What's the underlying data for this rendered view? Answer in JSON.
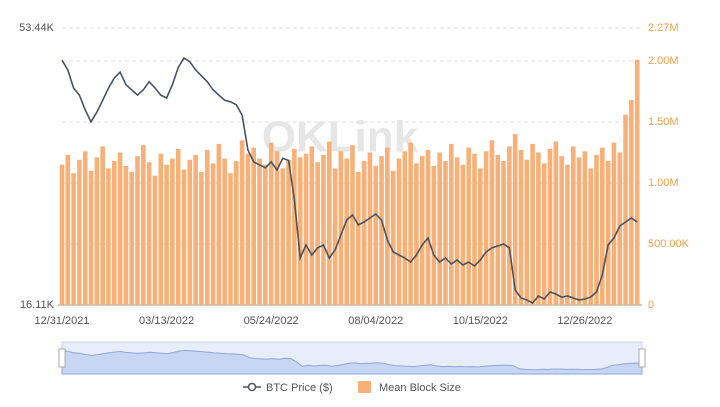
{
  "chart_data": {
    "type": "combo",
    "watermark": "OKLink",
    "categories": [
      "12/31/2021",
      null,
      null,
      null,
      null,
      null,
      null,
      null,
      null,
      null,
      null,
      null,
      null,
      null,
      null,
      null,
      null,
      null,
      "03/13/2022",
      null,
      null,
      null,
      null,
      null,
      null,
      null,
      null,
      null,
      null,
      null,
      null,
      null,
      null,
      null,
      null,
      null,
      "05/24/2022",
      null,
      null,
      null,
      null,
      null,
      null,
      null,
      null,
      null,
      null,
      null,
      null,
      null,
      null,
      null,
      null,
      null,
      "08/04/2022",
      null,
      null,
      null,
      null,
      null,
      null,
      null,
      null,
      null,
      null,
      null,
      null,
      null,
      null,
      null,
      null,
      null,
      "10/15/2022",
      null,
      null,
      null,
      null,
      null,
      null,
      null,
      null,
      null,
      null,
      null,
      null,
      null,
      null,
      null,
      null,
      null,
      "12/26/2022",
      null,
      null,
      null,
      null,
      null,
      null,
      null,
      null,
      null
    ],
    "series": [
      {
        "name": "BTC Price ($)",
        "type": "line",
        "axis": "y",
        "color": "#4a5360",
        "values": [
          49100,
          47800,
          45350,
          44400,
          42400,
          40800,
          42100,
          43700,
          45350,
          46700,
          47500,
          45800,
          45100,
          44400,
          45100,
          46200,
          45350,
          44400,
          44000,
          45800,
          48100,
          49400,
          48900,
          47800,
          47000,
          46200,
          45100,
          44400,
          43700,
          43500,
          43100,
          41700,
          37000,
          35400,
          35000,
          34600,
          35400,
          34300,
          35900,
          35600,
          30260,
          22440,
          24200,
          22850,
          23800,
          24200,
          22440,
          23520,
          25540,
          27560,
          28240,
          26900,
          27300,
          27830,
          28370,
          27560,
          24870,
          23250,
          22850,
          22440,
          21900,
          22850,
          24200,
          25140,
          22850,
          21900,
          22440,
          21640,
          22170,
          21500,
          21900,
          21360,
          22170,
          23250,
          23800,
          24060,
          24330,
          23800,
          18150,
          17050,
          16780,
          16380,
          17320,
          16920,
          17860,
          17590,
          17180,
          17320,
          17050,
          16780,
          16920,
          17180,
          17860,
          20150,
          24200,
          25140,
          26760,
          27300,
          27830,
          27300
        ]
      },
      {
        "name": "Mean Block Size",
        "type": "bar",
        "axis": "y2",
        "color": "#f7b077",
        "values": [
          1150000,
          1230000,
          1080000,
          1190000,
          1260000,
          1100000,
          1210000,
          1300000,
          1120000,
          1180000,
          1250000,
          1140000,
          1090000,
          1220000,
          1310000,
          1170000,
          1060000,
          1240000,
          1150000,
          1200000,
          1280000,
          1110000,
          1190000,
          1230000,
          1090000,
          1270000,
          1160000,
          1320000,
          1200000,
          1080000,
          1180000,
          1350000,
          1240000,
          1290000,
          1200000,
          1150000,
          1330000,
          1260000,
          1120000,
          1190000,
          1280000,
          1210000,
          1240000,
          1300000,
          1170000,
          1230000,
          1340000,
          1120000,
          1260000,
          1200000,
          1310000,
          1090000,
          1180000,
          1250000,
          1140000,
          1220000,
          1290000,
          1100000,
          1200000,
          1260000,
          1330000,
          1160000,
          1220000,
          1270000,
          1140000,
          1250000,
          1180000,
          1320000,
          1210000,
          1150000,
          1290000,
          1240000,
          1120000,
          1260000,
          1350000,
          1230000,
          1180000,
          1300000,
          1400000,
          1270000,
          1190000,
          1320000,
          1250000,
          1160000,
          1280000,
          1340000,
          1220000,
          1150000,
          1300000,
          1210000,
          1260000,
          1120000,
          1230000,
          1290000,
          1180000,
          1330000,
          1250000,
          1560000,
          1680000,
          2010000
        ]
      }
    ],
    "ylim": [
      16110,
      53440
    ],
    "yticks": [
      {
        "value": 16110,
        "label": "16.11K"
      },
      {
        "value": 53440,
        "label": "53.44K"
      }
    ],
    "y2lim": [
      0,
      2270000
    ],
    "y2ticks": [
      0,
      {
        "value": 500000,
        "label": "500.00K"
      },
      {
        "value": 1000000,
        "label": "1.00M"
      },
      {
        "value": 1500000,
        "label": "1.50M"
      },
      {
        "value": 2000000,
        "label": "2.00M"
      },
      {
        "value": 2270000,
        "label": "2.27M"
      }
    ],
    "grid": true,
    "legend": "bottom"
  }
}
